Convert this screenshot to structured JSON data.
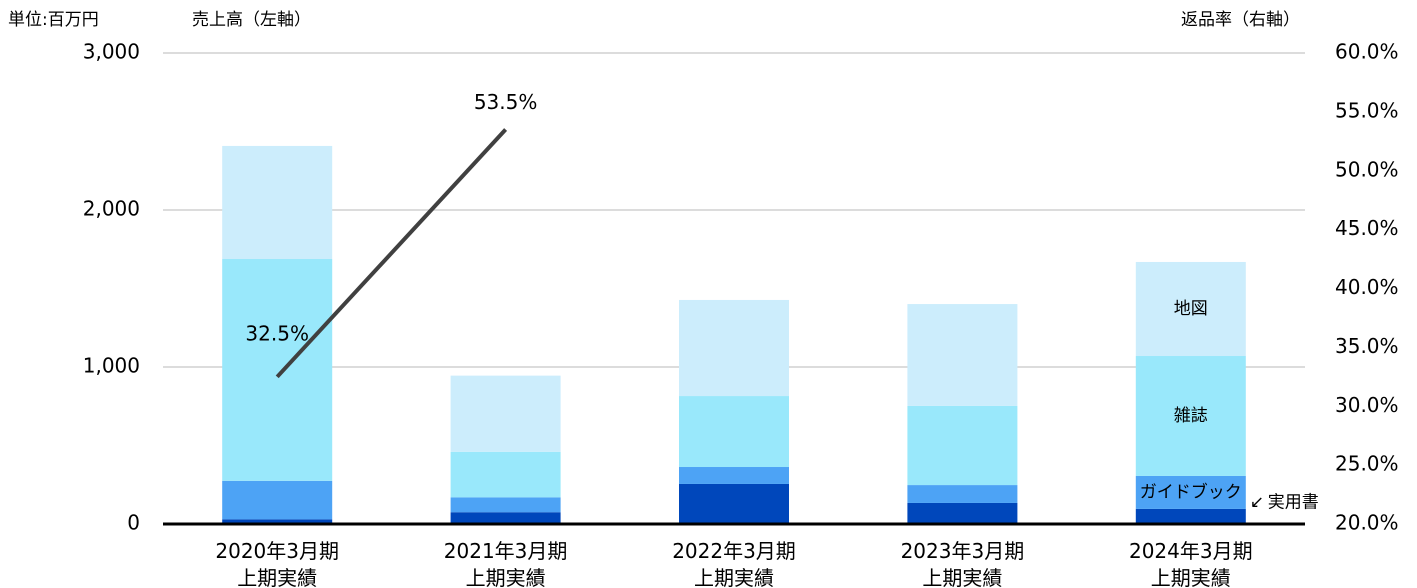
{
  "chart_data": {
    "type": "bar",
    "unit_label": "単位:百万円",
    "ylabel": "売上高（左軸）",
    "y2label": "返品率（右軸）",
    "stacked": true,
    "categories": [
      [
        "2020年3月期",
        "上期実績"
      ],
      [
        "2021年3月期",
        "上期実績"
      ],
      [
        "2022年3月期",
        "上期実績"
      ],
      [
        "2023年3月期",
        "上期実績"
      ],
      [
        "2024年3月期",
        "上期実績"
      ]
    ],
    "series": [
      {
        "name": "実用書",
        "color": "#0047bb",
        "values": [
          30,
          75,
          255,
          134,
          96
        ]
      },
      {
        "name": "ガイドブック",
        "color": "#4da3f5",
        "values": [
          245,
          95,
          108,
          114,
          210
        ]
      },
      {
        "name": "雑誌",
        "color": "#99e8fb",
        "values": [
          1413,
          290,
          452,
          504,
          764
        ]
      },
      {
        "name": "地図",
        "color": "#ccedfc",
        "values": [
          720,
          485,
          612,
          649,
          599
        ]
      },
      {
        "type": "line",
        "axis": "y2",
        "color": "#404040",
        "values": [
          32.5,
          53.5,
          null,
          null,
          null
        ],
        "value_labels": [
          "32.5%",
          "53.5%",
          null,
          null,
          null
        ]
      }
    ],
    "ylim": [
      0,
      3000
    ],
    "yticks": [
      0,
      {
        "value": 1000,
        "label": "1,000"
      },
      {
        "value": 2000,
        "label": "2,000"
      },
      {
        "value": 3000,
        "label": "3,000"
      }
    ],
    "y2lim": [
      20,
      60
    ],
    "y2ticks": [
      {
        "value": 20,
        "label": "20.0%"
      },
      {
        "value": 25,
        "label": "25.0%"
      },
      {
        "value": 30,
        "label": "30.0%"
      },
      {
        "value": 35,
        "label": "35.0%"
      },
      {
        "value": 40,
        "label": "40.0%"
      },
      {
        "value": 45,
        "label": "45.0%"
      },
      {
        "value": 50,
        "label": "50.0%"
      },
      {
        "value": 55,
        "label": "55.0%"
      },
      {
        "value": 60,
        "label": "60.0%"
      }
    ],
    "grid": true
  }
}
